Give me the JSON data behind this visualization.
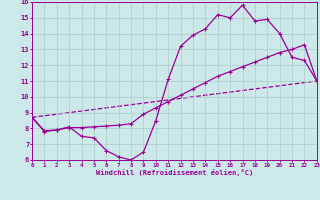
{
  "xlabel": "Windchill (Refroidissement éolien,°C)",
  "xlim": [
    0,
    23
  ],
  "ylim": [
    6,
    16
  ],
  "xticks": [
    0,
    1,
    2,
    3,
    4,
    5,
    6,
    7,
    8,
    9,
    10,
    11,
    12,
    13,
    14,
    15,
    16,
    17,
    18,
    19,
    20,
    21,
    22,
    23
  ],
  "yticks": [
    6,
    7,
    8,
    9,
    10,
    11,
    12,
    13,
    14,
    15,
    16
  ],
  "bg_color": "#cce8e8",
  "grid_color": "#aacccc",
  "line_color": "#990099",
  "line1_x": [
    0,
    1,
    2,
    3,
    4,
    5,
    6,
    7,
    8,
    9,
    10,
    11,
    12,
    13,
    14,
    15,
    16,
    17,
    18,
    19,
    20,
    21,
    22,
    23
  ],
  "line1_y": [
    8.7,
    7.8,
    7.9,
    8.1,
    7.5,
    7.4,
    6.6,
    6.2,
    6.0,
    6.5,
    8.5,
    11.1,
    13.2,
    13.9,
    14.3,
    15.2,
    15.0,
    15.8,
    14.8,
    14.9,
    14.0,
    12.5,
    12.3,
    11.0
  ],
  "line2_x": [
    0,
    1,
    2,
    3,
    4,
    5,
    6,
    7,
    8,
    9,
    10,
    11,
    12,
    13,
    14,
    15,
    16,
    17,
    18,
    19,
    20,
    21,
    22,
    23
  ],
  "line2_y": [
    8.7,
    7.85,
    7.9,
    8.05,
    8.05,
    8.1,
    8.15,
    8.2,
    8.3,
    8.9,
    9.3,
    9.7,
    10.1,
    10.5,
    10.9,
    11.3,
    11.6,
    11.9,
    12.2,
    12.5,
    12.8,
    13.0,
    13.3,
    11.0
  ],
  "line3_x": [
    0,
    23
  ],
  "line3_y": [
    8.7,
    11.0
  ],
  "markersize": 3,
  "linewidth": 0.9
}
